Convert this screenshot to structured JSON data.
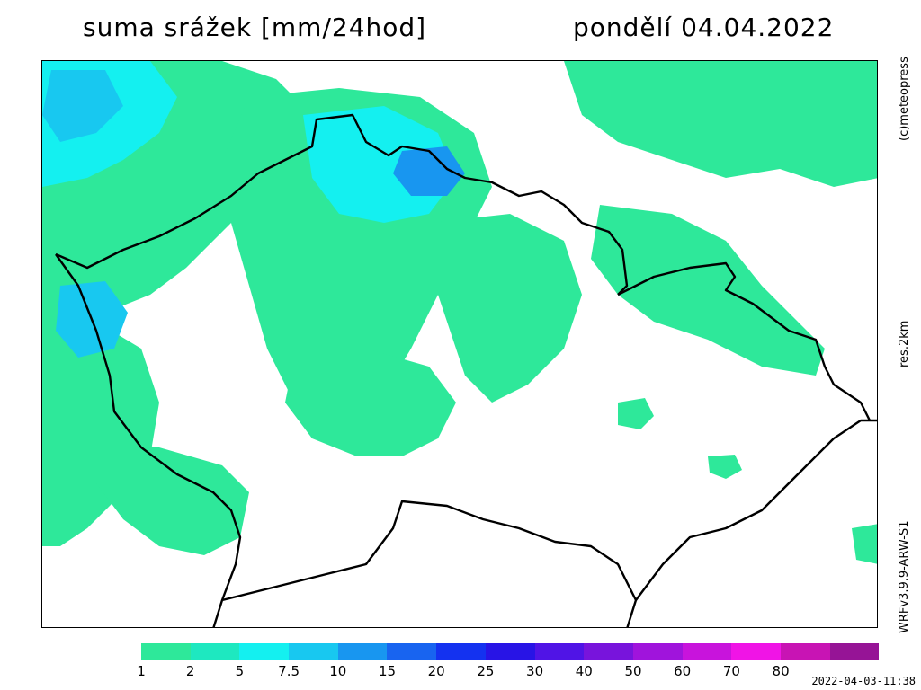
{
  "title": {
    "variable": "suma srážek [mm/24hod]",
    "date": "pondělí 04.04.2022"
  },
  "side_labels": {
    "copyright": "(c)meteopress",
    "resolution": "res.2km",
    "model": "WRFv3.9.9-ARW-S1"
  },
  "timestamp": "2022-04-03-11:38",
  "legend": {
    "labels": [
      "1",
      "2",
      "5",
      "7.5",
      "10",
      "15",
      "20",
      "25",
      "30",
      "40",
      "50",
      "60",
      "70",
      "80"
    ],
    "colors": [
      "#2ee89a",
      "#1ee8c0",
      "#14f0f0",
      "#18c8f0",
      "#1896f0",
      "#1864f0",
      "#1432f0",
      "#2814e6",
      "#5014e6",
      "#7814dc",
      "#a014dc",
      "#c814dc",
      "#f014e6",
      "#c814b4",
      "#961496"
    ]
  },
  "map_colors": {
    "light": "#2ee89a",
    "mid": "#1ee8c0",
    "cyan": "#14f0f0",
    "blue": "#18c8f0",
    "deep": "#1896f0",
    "border": "#000000"
  }
}
